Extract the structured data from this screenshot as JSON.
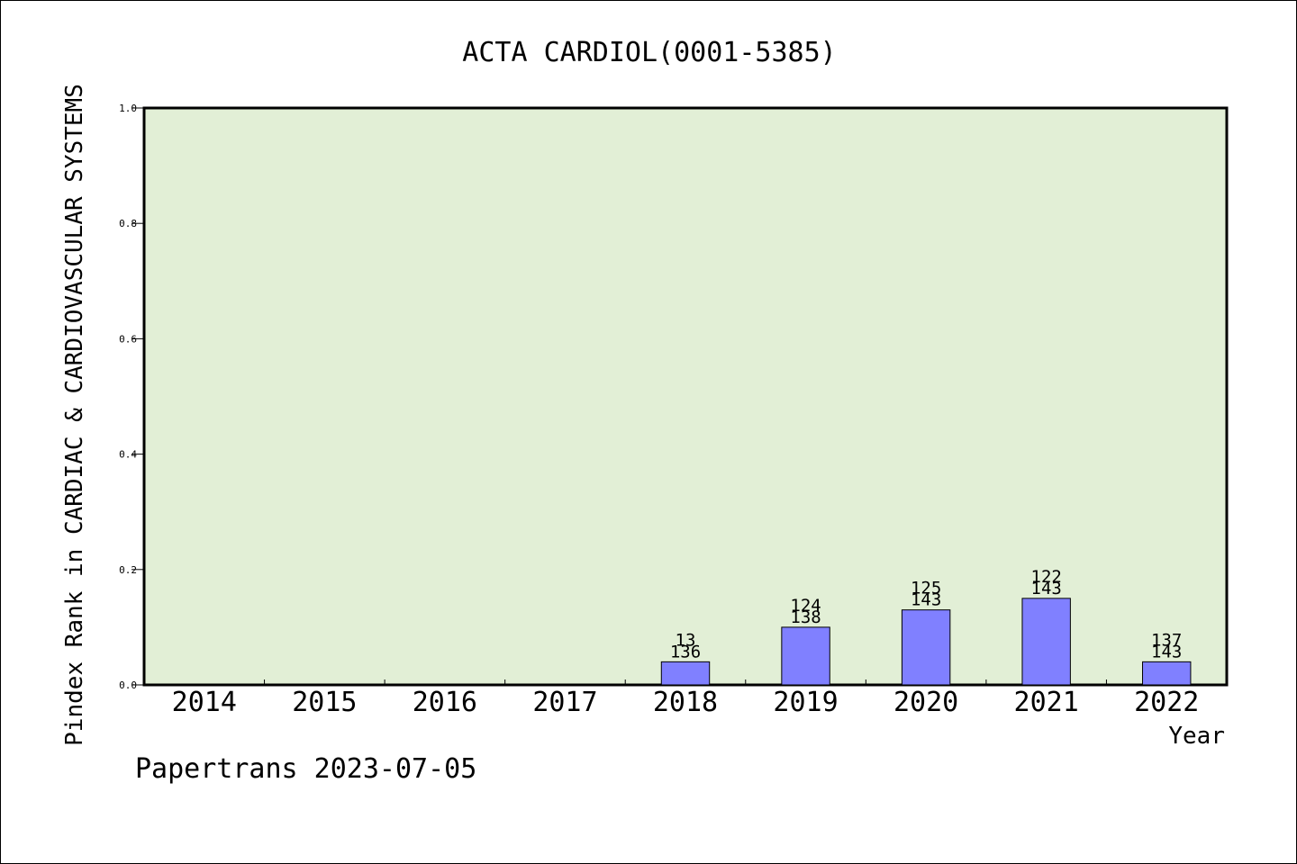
{
  "chart_data": {
    "type": "bar",
    "title": "ACTA CARDIOL(0001-5385)",
    "xlabel": "Year",
    "ylabel": "Pindex Rank in CARDIAC & CARDIOVASCULAR SYSTEMS",
    "categories": [
      "2014",
      "2015",
      "2016",
      "2017",
      "2018",
      "2019",
      "2020",
      "2021",
      "2022"
    ],
    "values": [
      null,
      null,
      null,
      null,
      0.04,
      0.1,
      0.13,
      0.15,
      0.04
    ],
    "bar_labels": [
      {
        "rank": "",
        "total": ""
      },
      {
        "rank": "",
        "total": ""
      },
      {
        "rank": "",
        "total": ""
      },
      {
        "rank": "",
        "total": ""
      },
      {
        "rank": "13",
        "total": "136"
      },
      {
        "rank": "124",
        "total": "138"
      },
      {
        "rank": "125",
        "total": "143"
      },
      {
        "rank": "122",
        "total": "143"
      },
      {
        "rank": "137",
        "total": "143"
      }
    ],
    "ylim": [
      0,
      1.0
    ],
    "yticks": [
      "0.0",
      "0.2",
      "0.4",
      "0.6",
      "0.8",
      "1.0"
    ],
    "grid": false,
    "legend": "none",
    "colors": {
      "plot_background": "#e2efd6",
      "bar_fill": "#8080ff",
      "bar_edge": "#000000",
      "axis": "#000000"
    }
  },
  "footer": {
    "credit": "Papertrans 2023-07-05"
  }
}
